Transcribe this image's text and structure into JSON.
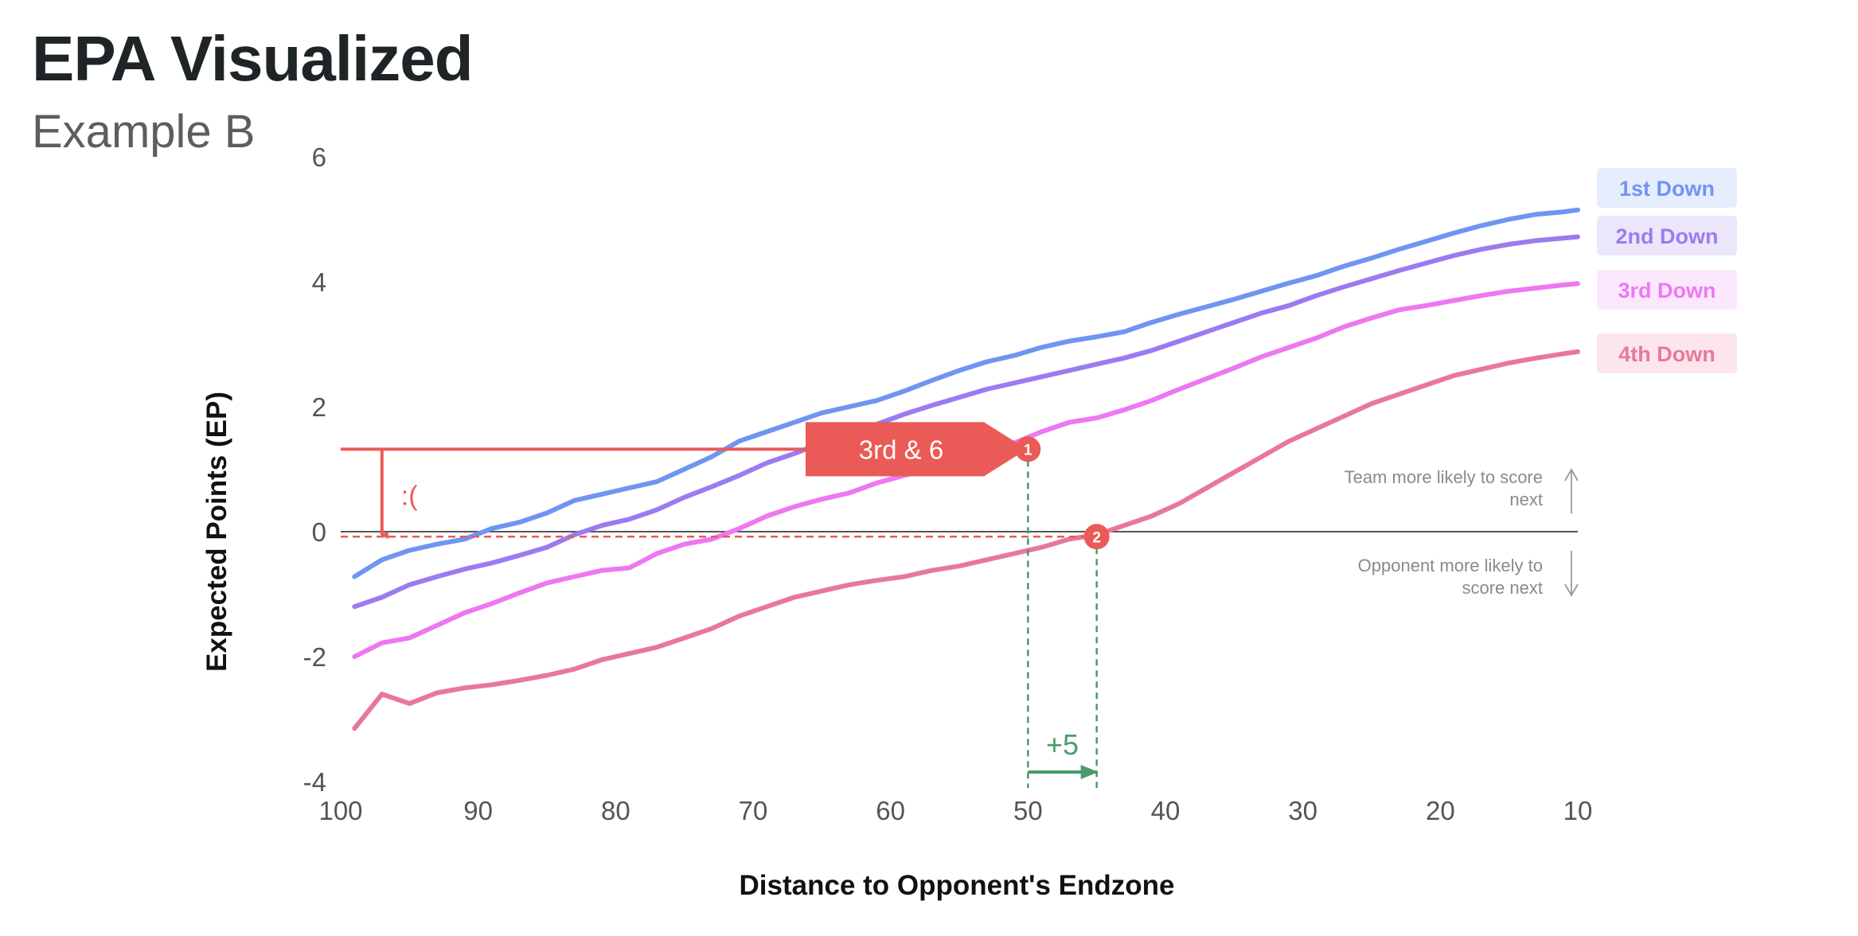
{
  "page": {
    "title": "EPA Visualized",
    "subtitle": "Example B"
  },
  "chart_data": {
    "type": "line",
    "xlabel": "Distance to Opponent's Endzone",
    "ylabel": "Expected Points (EP)",
    "xlim": [
      100,
      10
    ],
    "ylim": [
      -4,
      6
    ],
    "xticks": [
      100,
      90,
      80,
      70,
      60,
      50,
      40,
      30,
      20,
      10
    ],
    "yticks": [
      6,
      4,
      2,
      0,
      -2,
      -4
    ],
    "x": [
      99,
      97,
      95,
      93,
      91,
      89,
      87,
      85,
      83,
      81,
      79,
      77,
      75,
      73,
      71,
      69,
      67,
      65,
      63,
      61,
      59,
      57,
      55,
      53,
      51,
      49,
      47,
      45,
      43,
      41,
      39,
      37,
      35,
      33,
      31,
      29,
      27,
      25,
      23,
      21,
      19,
      17,
      15,
      13,
      11,
      10
    ],
    "series": [
      {
        "name": "1st Down",
        "color": "#6f95f2",
        "values": [
          -0.72,
          -0.45,
          -0.3,
          -0.2,
          -0.12,
          0.05,
          0.15,
          0.3,
          0.5,
          0.6,
          0.7,
          0.8,
          1.0,
          1.2,
          1.45,
          1.6,
          1.75,
          1.9,
          2.0,
          2.1,
          2.25,
          2.42,
          2.58,
          2.72,
          2.82,
          2.95,
          3.05,
          3.12,
          3.2,
          3.35,
          3.48,
          3.6,
          3.72,
          3.85,
          3.98,
          4.1,
          4.25,
          4.38,
          4.52,
          4.65,
          4.78,
          4.9,
          5.0,
          5.08,
          5.12,
          5.15
        ]
      },
      {
        "name": "2nd Down",
        "color": "#9b7bf0",
        "values": [
          -1.2,
          -1.05,
          -0.85,
          -0.72,
          -0.6,
          -0.5,
          -0.38,
          -0.25,
          -0.05,
          0.1,
          0.2,
          0.35,
          0.55,
          0.72,
          0.9,
          1.1,
          1.25,
          1.42,
          1.58,
          1.72,
          1.88,
          2.02,
          2.15,
          2.28,
          2.38,
          2.48,
          2.58,
          2.68,
          2.78,
          2.9,
          3.05,
          3.2,
          3.35,
          3.5,
          3.62,
          3.78,
          3.92,
          4.05,
          4.18,
          4.3,
          4.42,
          4.52,
          4.6,
          4.66,
          4.7,
          4.72
        ]
      },
      {
        "name": "3rd Down",
        "color": "#ee77f2",
        "values": [
          -2.0,
          -1.78,
          -1.7,
          -1.5,
          -1.3,
          -1.15,
          -0.98,
          -0.82,
          -0.72,
          -0.62,
          -0.58,
          -0.35,
          -0.2,
          -0.12,
          0.05,
          0.25,
          0.4,
          0.52,
          0.62,
          0.78,
          0.9,
          1.0,
          1.12,
          1.28,
          1.42,
          1.6,
          1.75,
          1.82,
          1.95,
          2.1,
          2.28,
          2.45,
          2.62,
          2.8,
          2.95,
          3.1,
          3.28,
          3.42,
          3.55,
          3.62,
          3.7,
          3.78,
          3.85,
          3.9,
          3.95,
          3.97
        ]
      },
      {
        "name": "4th Down",
        "color": "#e8789a",
        "values": [
          -3.15,
          -2.6,
          -2.75,
          -2.58,
          -2.5,
          -2.45,
          -2.38,
          -2.3,
          -2.2,
          -2.05,
          -1.95,
          -1.85,
          -1.7,
          -1.55,
          -1.35,
          -1.2,
          -1.05,
          -0.95,
          -0.85,
          -0.78,
          -0.72,
          -0.62,
          -0.55,
          -0.45,
          -0.35,
          -0.25,
          -0.12,
          -0.05,
          0.1,
          0.25,
          0.45,
          0.7,
          0.95,
          1.2,
          1.45,
          1.65,
          1.85,
          2.05,
          2.2,
          2.35,
          2.5,
          2.6,
          2.7,
          2.78,
          2.85,
          2.88
        ]
      }
    ],
    "legend_position": "top-right",
    "annotations": {
      "callout_label": "3rd & 6",
      "marker_1": "1",
      "marker_2": "2",
      "sad_face": ":(",
      "gain_label": "+5",
      "team_more_likely_line1": "Team more likely to score",
      "team_more_likely_line2": "next",
      "opp_more_likely_line1": "Opponent more likely to",
      "opp_more_likely_line2": "score next",
      "reference_ep": 1.32,
      "point_1": {
        "x": 50,
        "y": 1.32
      },
      "point_2": {
        "x": 45,
        "y": -0.08
      }
    },
    "colors": {
      "accent_red": "#ea5a57",
      "green": "#4b9a6d",
      "zero_line": "#555555"
    }
  }
}
